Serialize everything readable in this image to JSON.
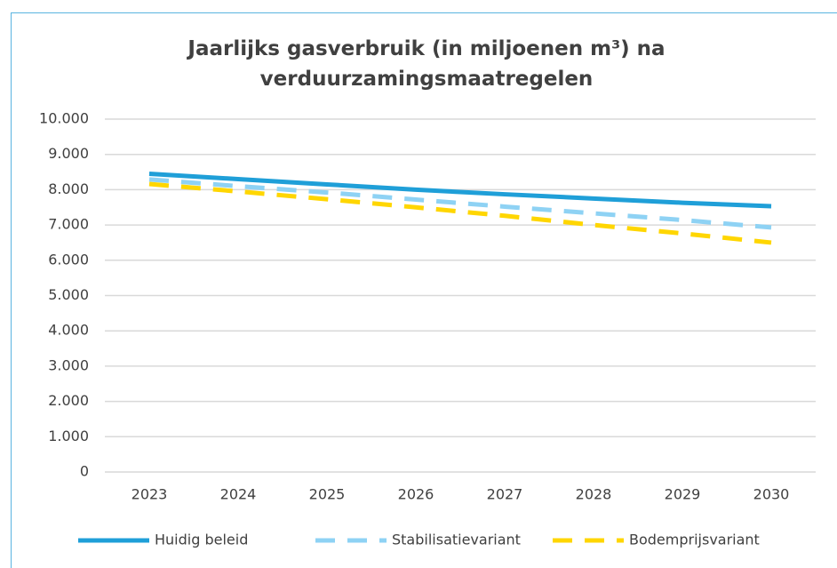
{
  "chart_data": {
    "type": "line",
    "title": "Jaarlijks gasverbruik (in miljoenen m³) na verduurzamingsmaatregelen",
    "categories": [
      "2023",
      "2024",
      "2025",
      "2026",
      "2027",
      "2028",
      "2029",
      "2030"
    ],
    "series": [
      {
        "name": "Huidig beleid",
        "color": "#1f9fd8",
        "dash": false,
        "values": [
          8450,
          8300,
          8150,
          8000,
          7870,
          7750,
          7630,
          7530
        ]
      },
      {
        "name": "Stabilisatievariant",
        "color": "#8ed2f4",
        "dash": true,
        "values": [
          8290,
          8100,
          7920,
          7720,
          7520,
          7330,
          7140,
          6930
        ]
      },
      {
        "name": "Bodemprijsvariant",
        "color": "#ffd600",
        "dash": true,
        "values": [
          8160,
          7950,
          7730,
          7500,
          7260,
          7000,
          6760,
          6500
        ]
      }
    ],
    "ylim": [
      0,
      10000
    ],
    "yticks": [
      0,
      {
        "value": 1000,
        "label": "1.000"
      },
      {
        "value": 2000,
        "label": "2.000"
      },
      {
        "value": 3000,
        "label": "3.000"
      },
      {
        "value": 4000,
        "label": "4.000"
      },
      {
        "value": 5000,
        "label": "5.000"
      },
      {
        "value": 6000,
        "label": "6.000"
      },
      {
        "value": 7000,
        "label": "7.000"
      },
      {
        "value": 8000,
        "label": "8.000"
      },
      {
        "value": 9000,
        "label": "9.000"
      },
      {
        "value": 10000,
        "label": "10.000"
      }
    ],
    "grid": true,
    "legend": "bottom"
  }
}
